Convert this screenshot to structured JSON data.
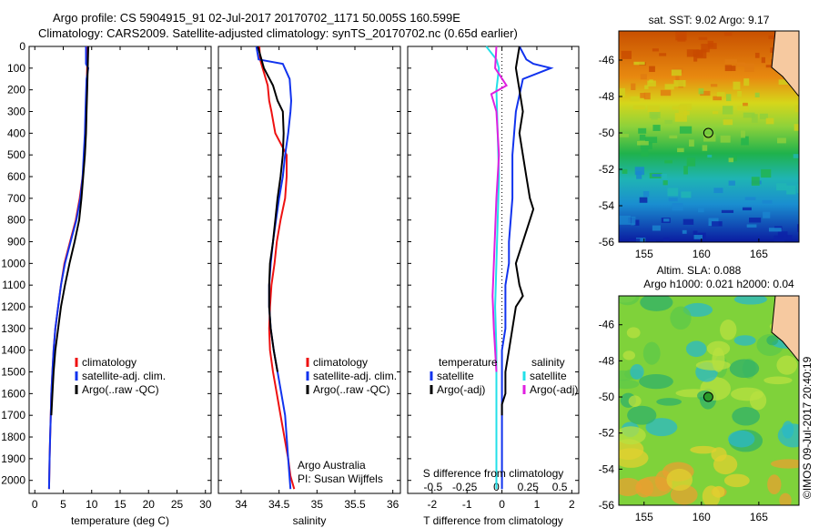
{
  "header": {
    "line1": "Argo profile: CS 5904915_91 02-Jul-2017 20170702_1171 50.005S 160.599E",
    "line2": "Climatology: CARS2009. Satellite-adjusted climatology: synTS_20170702.nc (0.65d earlier)"
  },
  "colors": {
    "climatology": "#ee1111",
    "satellite": "#1133ee",
    "argo": "#000000",
    "salinity_satellite": "#22e0e8",
    "salinity_argo": "#e020e0"
  },
  "chart_data": [
    {
      "type": "line",
      "id": "temperature",
      "xlabel": "temperature (deg C)",
      "ylabel": "",
      "xlim": [
        -1,
        31
      ],
      "ylim": [
        2060,
        0
      ],
      "xticks": [
        0,
        5,
        10,
        15,
        20,
        25,
        30
      ],
      "yticks": [
        0,
        100,
        200,
        300,
        400,
        500,
        600,
        700,
        800,
        900,
        1000,
        1100,
        1200,
        1300,
        1400,
        1500,
        1600,
        1700,
        1800,
        1900,
        2000
      ],
      "legend": [
        "climatology",
        "satellite-adj. clim.",
        "Argo(..raw -QC)"
      ],
      "series": [
        {
          "name": "climatology",
          "color": "#ee1111",
          "x": [
            9.2,
            9.2,
            9.1,
            9.0,
            8.9,
            8.7,
            8.4,
            7.9,
            7.2,
            6.2,
            5.2,
            4.6,
            4.1,
            3.6,
            3.3,
            3.1,
            2.9,
            2.8,
            2.7,
            2.6,
            2.5
          ],
          "y": [
            0,
            100,
            200,
            300,
            400,
            500,
            600,
            700,
            800,
            900,
            1000,
            1100,
            1200,
            1300,
            1400,
            1500,
            1600,
            1700,
            1800,
            1900,
            2040
          ]
        },
        {
          "name": "satellite-adj. clim.",
          "color": "#1133ee",
          "x": [
            9.0,
            9.0,
            9.4,
            9.1,
            8.9,
            8.8,
            8.6,
            8.4,
            8.0,
            7.3,
            6.3,
            5.3,
            4.6,
            4.1,
            3.6,
            3.3,
            3.1,
            2.9,
            2.8,
            2.7,
            2.6,
            2.5
          ],
          "y": [
            0,
            80,
            100,
            150,
            300,
            400,
            500,
            600,
            700,
            800,
            900,
            1000,
            1100,
            1200,
            1300,
            1400,
            1500,
            1600,
            1700,
            1800,
            1900,
            2040
          ]
        },
        {
          "name": "Argo(..raw -QC)",
          "color": "#000000",
          "x": [
            9.4,
            9.3,
            9.2,
            9.1,
            9.0,
            8.8,
            8.5,
            8.2,
            7.8,
            7.0,
            6.1,
            5.3,
            4.6,
            4.1,
            3.6,
            3.3,
            3.1,
            2.9
          ],
          "y": [
            0,
            100,
            200,
            300,
            400,
            500,
            600,
            700,
            800,
            900,
            1000,
            1100,
            1200,
            1300,
            1400,
            1500,
            1600,
            1700
          ]
        }
      ]
    },
    {
      "type": "line",
      "id": "salinity",
      "xlabel": "salinity",
      "ylabel": "",
      "xlim": [
        33.7,
        36.1
      ],
      "ylim": [
        2060,
        0
      ],
      "xticks": [
        34,
        34.5,
        35,
        35.5,
        36
      ],
      "legend": [
        "climatology",
        "satellite-adj. clim.",
        "Argo(..raw -QC)"
      ],
      "annotation": [
        "Argo Australia",
        "PI: Susan Wijffels"
      ],
      "series": [
        {
          "name": "climatology",
          "color": "#ee1111",
          "x": [
            34.24,
            34.25,
            34.3,
            34.35,
            34.37,
            34.4,
            34.45,
            34.6,
            34.6,
            34.58,
            34.52,
            34.47,
            34.44,
            34.4,
            34.38,
            34.37,
            34.38,
            34.42,
            34.47,
            34.52,
            34.57,
            34.62,
            34.65,
            34.7
          ],
          "y": [
            0,
            60,
            120,
            180,
            250,
            300,
            400,
            500,
            600,
            700,
            800,
            900,
            1000,
            1100,
            1200,
            1300,
            1400,
            1500,
            1600,
            1700,
            1800,
            1900,
            1980,
            2040
          ]
        },
        {
          "name": "satellite-adj. clim.",
          "color": "#1133ee",
          "x": [
            34.2,
            34.23,
            34.55,
            34.64,
            34.66,
            34.65,
            34.62,
            34.58,
            34.55,
            34.5,
            34.46,
            34.42,
            34.39,
            34.37,
            34.37,
            34.39,
            34.43,
            34.48,
            34.53,
            34.58,
            34.62,
            34.65
          ],
          "y": [
            0,
            60,
            80,
            150,
            250,
            300,
            400,
            500,
            600,
            700,
            800,
            900,
            1000,
            1100,
            1200,
            1300,
            1400,
            1500,
            1600,
            1700,
            1900,
            2040
          ]
        },
        {
          "name": "Argo(..raw -QC)",
          "color": "#000000",
          "x": [
            34.22,
            34.3,
            34.42,
            34.48,
            34.55,
            34.56,
            34.55,
            34.52,
            34.48,
            34.45,
            34.42,
            34.38,
            34.37,
            34.37,
            34.39,
            34.43,
            34.48
          ],
          "y": [
            0,
            100,
            180,
            250,
            300,
            400,
            500,
            600,
            700,
            800,
            900,
            1000,
            1100,
            1200,
            1300,
            1400,
            1500
          ]
        }
      ]
    },
    {
      "type": "line",
      "id": "difference",
      "xlabel": "T difference from climatology",
      "xlabel_top": "S difference from climatology",
      "xlim_T": [
        -2.7,
        2.2
      ],
      "xlim_S": [
        -0.7,
        0.65
      ],
      "xticks_T": [
        -2,
        -1,
        0,
        1,
        2
      ],
      "xticks_S": [
        -0.5,
        -0.25,
        0,
        0.25,
        0.5
      ],
      "ylim": [
        2060,
        0
      ],
      "legend_titles": [
        "temperature",
        "salinity"
      ],
      "legend": [
        "satellite",
        "Argo(-adj)",
        "satellite",
        "Argo(-adj)"
      ],
      "series": [
        {
          "name": "temperature satellite",
          "color": "#1133ee",
          "axis": "T",
          "x": [
            0.5,
            0.7,
            0.9,
            1.4,
            0.6,
            0.4,
            0.3,
            0.3,
            0.2,
            0.2,
            0.1,
            0.1,
            0.1,
            0.0,
            0.0,
            0.0,
            0.0,
            0.0
          ],
          "y": [
            0,
            60,
            80,
            100,
            150,
            300,
            500,
            700,
            900,
            1000,
            1100,
            1200,
            1300,
            1400,
            1500,
            1700,
            1900,
            2040
          ]
        },
        {
          "name": "temperature Argo(-adj)",
          "color": "#000000",
          "axis": "T",
          "x": [
            0.5,
            0.4,
            0.5,
            0.6,
            0.5,
            0.6,
            0.7,
            0.8,
            0.9,
            0.8,
            0.6,
            0.4,
            0.5,
            0.6,
            0.4,
            0.3,
            0.2,
            0.1,
            0.1,
            0.0,
            0.0
          ],
          "y": [
            0,
            100,
            200,
            300,
            400,
            500,
            600,
            700,
            750,
            800,
            900,
            1000,
            1100,
            1150,
            1200,
            1300,
            1400,
            1500,
            1600,
            1650,
            1700
          ]
        },
        {
          "name": "salinity satellite",
          "color": "#22e0e8",
          "axis": "S",
          "x": [
            -0.08,
            0.0,
            0.02,
            0.0,
            0.01,
            0.02,
            0.01,
            0.0,
            -0.01,
            0.0,
            0.0,
            0.0,
            0.0,
            0.0
          ],
          "y": [
            0,
            60,
            100,
            200,
            400,
            600,
            800,
            1000,
            1200,
            1400,
            1600,
            1800,
            1900,
            2040
          ]
        },
        {
          "name": "salinity Argo(-adj)",
          "color": "#e020e0",
          "axis": "S",
          "x": [
            0.0,
            -0.01,
            0.08,
            -0.04,
            0.0,
            0.02,
            0.0,
            -0.02,
            -0.03,
            -0.02,
            -0.01,
            0.0
          ],
          "y": [
            0,
            100,
            180,
            220,
            300,
            500,
            700,
            1000,
            1150,
            1300,
            1400,
            1500
          ]
        }
      ]
    },
    {
      "type": "heatmap",
      "id": "sst-map",
      "title": "sat. SST: 9.02 Argo: 9.17",
      "xticks": [
        155,
        160,
        165
      ],
      "yticks": [
        -46,
        -48,
        -50,
        -52,
        -54,
        -56
      ],
      "xlim": [
        152.8,
        168.5
      ],
      "ylim": [
        -56,
        -44.4
      ],
      "marker": {
        "lon": 160.6,
        "lat": -50.0
      }
    },
    {
      "type": "heatmap",
      "id": "sla-map",
      "title": "Altim. SLA: 0.088",
      "subtitle": "Argo h1000: 0.021 h2000: 0.04",
      "xticks": [
        155,
        160,
        165
      ],
      "yticks": [
        -46,
        -48,
        -50,
        -52,
        -54,
        -56
      ],
      "xlim": [
        152.8,
        168.5
      ],
      "ylim": [
        -56,
        -44.4
      ],
      "marker": {
        "lon": 160.6,
        "lat": -50.0
      },
      "side_label": "©IMOS 09-Jul-2017 20:40:19"
    }
  ]
}
